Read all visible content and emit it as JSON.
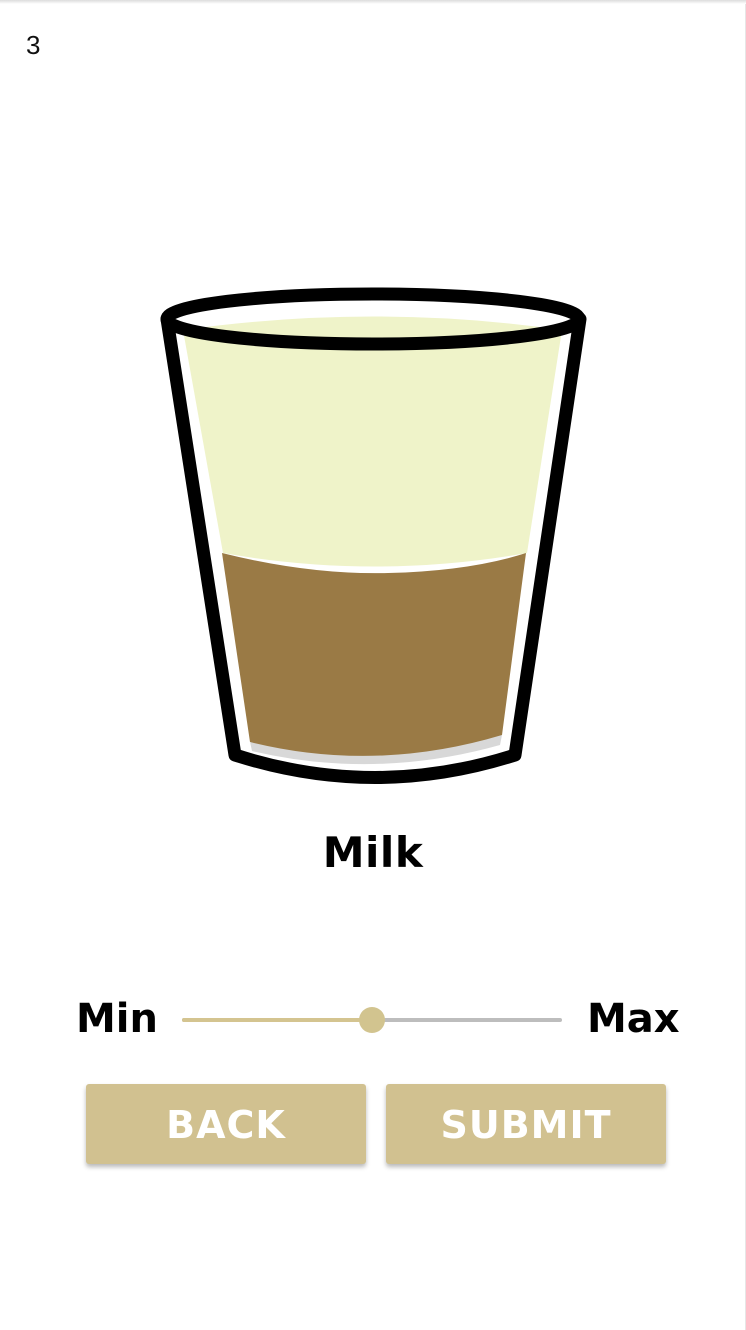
{
  "step": {
    "number": "3"
  },
  "ingredient": {
    "name": "Milk"
  },
  "glass": {
    "liquid_colors": {
      "coffee": "#9a7a45",
      "milk": "#eff3c9"
    },
    "coffee_fraction": 0.45
  },
  "slider": {
    "min_label": "Min",
    "max_label": "Max",
    "value_fraction": 0.5,
    "active_color": "#d4c490",
    "inactive_color": "#bdbdbd"
  },
  "buttons": {
    "back_label": "BACK",
    "submit_label": "SUBMIT",
    "color": "#d1c190"
  }
}
